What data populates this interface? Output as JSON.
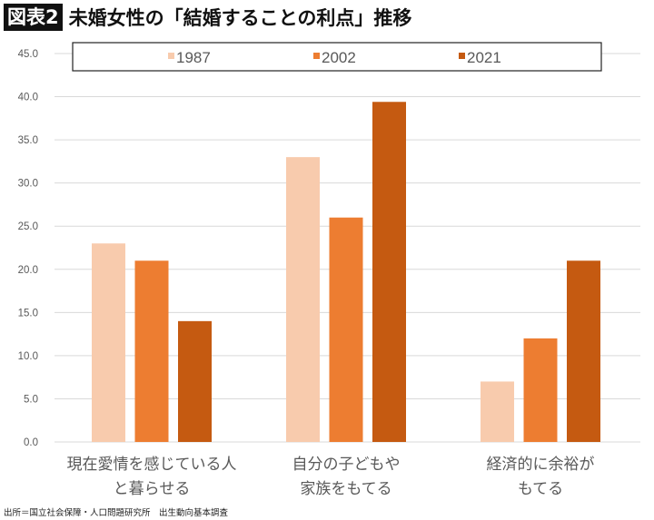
{
  "header": {
    "badge": "図表2",
    "title": "未婚女性の「結婚することの利点」推移"
  },
  "source": "出所＝国立社会保障・人口問題研究所　出生動向基本調査",
  "chart_data": {
    "type": "bar",
    "title": "",
    "categories": [
      [
        "現在愛情を感じている人",
        "と暮らせる"
      ],
      [
        "自分の子どもや",
        "家族をもてる"
      ],
      [
        "経済的に余裕が",
        "もてる"
      ]
    ],
    "series": [
      {
        "name": "1987",
        "values": [
          23.0,
          33.0,
          7.0
        ],
        "color": "#F8CBAD"
      },
      {
        "name": "2002",
        "values": [
          21.0,
          26.0,
          12.0
        ],
        "color": "#ED7D31"
      },
      {
        "name": "2021",
        "values": [
          14.0,
          39.4,
          21.0
        ],
        "color": "#C55A11"
      }
    ],
    "ylim": [
      0,
      45
    ],
    "yticks": [
      "0.0",
      "5.0",
      "10.0",
      "15.0",
      "20.0",
      "25.0",
      "30.0",
      "35.0",
      "40.0",
      "45.0"
    ],
    "grid": true,
    "legend": "top"
  }
}
